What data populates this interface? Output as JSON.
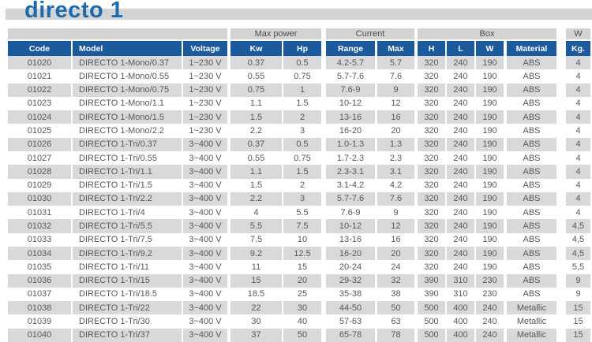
{
  "title": "directo 1",
  "colors": {
    "title_blue": "#1d6bad",
    "header_blue": "#1b5a9d",
    "bar_gray": "#d2d3d5",
    "row_gray": "#d9d9db",
    "text_gray": "#57585a"
  },
  "table": {
    "group_headers": [
      {
        "label": ""
      },
      {
        "label": "Max power"
      },
      {
        "label": "Current"
      },
      {
        "label": "Box"
      },
      {
        "label": "W"
      }
    ],
    "columns": [
      "Code",
      "Model",
      "Voltage",
      "Kw",
      "Hp",
      "Range",
      "Max",
      "H",
      "L",
      "W",
      "Material",
      "Kg."
    ],
    "rows": [
      [
        "01020",
        "DIRECTO 1-Mono/0.37",
        "1~230 V",
        "0.37",
        "0.5",
        "4.2-5.7",
        "5.7",
        "320",
        "240",
        "190",
        "ABS",
        "4"
      ],
      [
        "01021",
        "DIRECTO 1-Mono/0.55",
        "1~230 V",
        "0.55",
        "0.75",
        "5.7-7.6",
        "7.6",
        "320",
        "240",
        "190",
        "ABS",
        "4"
      ],
      [
        "01022",
        "DIRECTO 1-Mono/0.75",
        "1~230 V",
        "0.75",
        "1",
        "7.6-9",
        "9",
        "320",
        "240",
        "190",
        "ABS",
        "4"
      ],
      [
        "01023",
        "DIRECTO 1-Mono/1.1",
        "1~230 V",
        "1.1",
        "1.5",
        "10-12",
        "12",
        "320",
        "240",
        "190",
        "ABS",
        "4"
      ],
      [
        "01024",
        "DIRECTO 1-Mono/1.5",
        "1~230 V",
        "1.5",
        "2",
        "13-16",
        "16",
        "320",
        "240",
        "190",
        "ABS",
        "4"
      ],
      [
        "01025",
        "DIRECTO 1-Mono/2.2",
        "1~230 V",
        "2.2",
        "3",
        "16-20",
        "20",
        "320",
        "240",
        "190",
        "ABS",
        "4"
      ],
      [
        "01026",
        "DIRECTO 1-Tri/0.37",
        "3~400 V",
        "0.37",
        "0.5",
        "1.0-1.3",
        "1.3",
        "320",
        "240",
        "190",
        "ABS",
        "4"
      ],
      [
        "01027",
        "DIRECTO 1-Tri/0.55",
        "3~400 V",
        "0.55",
        "0.75",
        "1.7-2.3",
        "2.3",
        "320",
        "240",
        "190",
        "ABS",
        "4"
      ],
      [
        "01028",
        "DIRECTO 1-Tri/1.1",
        "3~400 V",
        "1.1",
        "1.5",
        "2.3-3.1",
        "3.1",
        "320",
        "240",
        "190",
        "ABS",
        "4"
      ],
      [
        "01029",
        "DIRECTO 1-Tri/1.5",
        "3~400 V",
        "1.5",
        "2",
        "3.1-4.2",
        "4.2",
        "320",
        "240",
        "190",
        "ABS",
        "4"
      ],
      [
        "01030",
        "DIRECTO 1-Tri/2.2",
        "3~400 V",
        "2.2",
        "3",
        "5.7-7.6",
        "7.6",
        "320",
        "240",
        "190",
        "ABS",
        "4"
      ],
      [
        "01031",
        "DIRECTO 1-Tri/4",
        "3~400 V",
        "4",
        "5.5",
        "7.6-9",
        "9",
        "320",
        "240",
        "190",
        "ABS",
        "4"
      ],
      [
        "01032",
        "DIRECTO 1-Tri/5.5",
        "3~400 V",
        "5.5",
        "7.5",
        "10-12",
        "12",
        "320",
        "240",
        "190",
        "ABS",
        "4,5"
      ],
      [
        "01033",
        "DIRECTO 1-Tri/7.5",
        "3~400 V",
        "7.5",
        "10",
        "13-16",
        "16",
        "320",
        "240",
        "190",
        "ABS",
        "4,5"
      ],
      [
        "01034",
        "DIRECTO 1-Tri/9.2",
        "3~400 V",
        "9.2",
        "12.5",
        "16-20",
        "20",
        "320",
        "240",
        "190",
        "ABS",
        "4,5"
      ],
      [
        "01035",
        "DIRECTO 1-Tri/11",
        "3~400 V",
        "11",
        "15",
        "20-24",
        "24",
        "320",
        "240",
        "190",
        "ABS",
        "5,5"
      ],
      [
        "01036",
        "DIRECTO 1-Tri/15",
        "3~400 V",
        "15",
        "20",
        "29-32",
        "32",
        "390",
        "310",
        "230",
        "ABS",
        "9"
      ],
      [
        "01037",
        "DIRECTO 1-Tri/18.5",
        "3~400 V",
        "18.5",
        "25",
        "35-38",
        "38",
        "390",
        "310",
        "230",
        "ABS",
        "9"
      ],
      [
        "01038",
        "DIRECTO 1-Tri/22",
        "3~400 V",
        "22",
        "30",
        "44-50",
        "50",
        "500",
        "400",
        "240",
        "Metallic",
        "15"
      ],
      [
        "01039",
        "DIRECTO 1-Tri/30",
        "3~400 V",
        "30",
        "40",
        "57-63",
        "63",
        "500",
        "400",
        "240",
        "Metallic",
        "15"
      ],
      [
        "01040",
        "DIRECTO 1-Tri/37",
        "3~400 V",
        "37",
        "50",
        "65-78",
        "78",
        "500",
        "400",
        "240",
        "Metallic",
        "15"
      ]
    ]
  }
}
